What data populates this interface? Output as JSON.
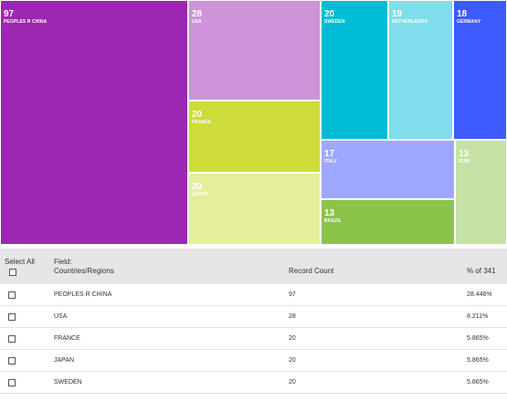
{
  "treemap": {
    "tiles": [
      {
        "count": "97",
        "name": "PEOPLES R CHINA",
        "color": "#9c27b0"
      },
      {
        "count": "28",
        "name": "USA",
        "color": "#ce93d8"
      },
      {
        "count": "20",
        "name": "FRANCE",
        "color": "#cddc39"
      },
      {
        "count": "20",
        "name": "JAPAN",
        "color": "#e6ee9c"
      },
      {
        "count": "20",
        "name": "SWEDEN",
        "color": "#00bcd4"
      },
      {
        "count": "19",
        "name": "NETHERLANDS",
        "color": "#80deea"
      },
      {
        "count": "18",
        "name": "GERMANY",
        "color": "#3d5afe"
      },
      {
        "count": "17",
        "name": "ITALY",
        "color": "#9fa8ff"
      },
      {
        "count": "13",
        "name": "BRAZIL",
        "color": "#8bc34a"
      },
      {
        "count": "13",
        "name": "IRAN",
        "color": "#c5e1a5"
      }
    ]
  },
  "table": {
    "select_all_label": "Select All",
    "field_label": "Field:",
    "field_value": "Countries/Regions",
    "record_count_header": "Record Count",
    "percent_header": "% of 341",
    "rows": [
      {
        "name": "PEOPLES R CHINA",
        "count": "97",
        "percent": "28.446%"
      },
      {
        "name": "USA",
        "count": "28",
        "percent": "8.211%"
      },
      {
        "name": "FRANCE",
        "count": "20",
        "percent": "5.865%"
      },
      {
        "name": "JAPAN",
        "count": "20",
        "percent": "5.865%"
      },
      {
        "name": "SWEDEN",
        "count": "20",
        "percent": "5.865%"
      }
    ]
  }
}
